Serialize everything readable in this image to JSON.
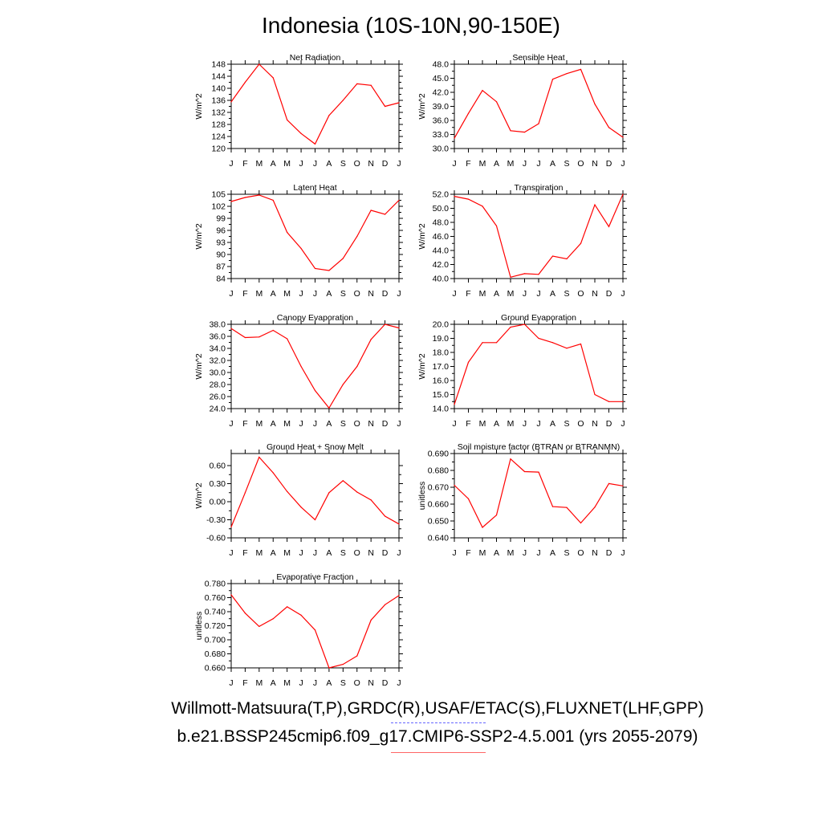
{
  "page": {
    "title": "Indonesia (10S-10N,90-150E)",
    "footer": {
      "line1": "Willmott-Matsuura(T,P),GRDC(R),USAF/ETAC(S),FLUXNET(LHF,GPP)",
      "line2": "b.e21.BSSP245cmip6.f09_g17.CMIP6-SSP2-4.5.001 (yrs 2055-2079)",
      "obs_color": "#6666ff",
      "model_color": "#ff6666"
    }
  },
  "chart_data": [
    {
      "type": "line",
      "title": "Net Radiation",
      "ylabel": "W/m^2",
      "categories": [
        "J",
        "F",
        "M",
        "A",
        "M",
        "J",
        "J",
        "A",
        "S",
        "O",
        "N",
        "D",
        "J"
      ],
      "ylim": [
        120,
        148
      ],
      "yticks": [
        "120",
        "124",
        "128",
        "132",
        "136",
        "140",
        "144",
        "148"
      ],
      "series": [
        {
          "color": "#ff0000",
          "values": [
            135.5,
            142,
            148,
            143.5,
            129.5,
            125,
            121.5,
            131,
            136,
            141.5,
            141,
            134,
            135.2
          ]
        }
      ]
    },
    {
      "type": "line",
      "title": "Sensible Heat",
      "ylabel": "W/m^2",
      "categories": [
        "J",
        "F",
        "M",
        "A",
        "M",
        "J",
        "J",
        "A",
        "S",
        "O",
        "N",
        "D",
        "J"
      ],
      "ylim": [
        30,
        48
      ],
      "yticks": [
        "30.0",
        "33.0",
        "36.0",
        "39.0",
        "42.0",
        "45.0",
        "48.0"
      ],
      "series": [
        {
          "color": "#ff0000",
          "values": [
            32.2,
            37.5,
            42.4,
            40.0,
            33.8,
            33.5,
            35.3,
            44.8,
            46.0,
            46.9,
            39.5,
            34.5,
            32.4
          ]
        }
      ]
    },
    {
      "type": "line",
      "title": "Latent Heat",
      "ylabel": "W/m^2",
      "categories": [
        "J",
        "F",
        "M",
        "A",
        "M",
        "J",
        "J",
        "A",
        "S",
        "O",
        "N",
        "D",
        "J"
      ],
      "ylim": [
        84,
        105
      ],
      "yticks": [
        "84",
        "87",
        "90",
        "93",
        "96",
        "99",
        "102",
        "105"
      ],
      "series": [
        {
          "color": "#ff0000",
          "values": [
            103.2,
            104.2,
            104.8,
            103.5,
            95.5,
            91.5,
            86.5,
            86.0,
            89.0,
            94.5,
            101.0,
            100.0,
            103.5
          ]
        }
      ]
    },
    {
      "type": "line",
      "title": "Transpiration",
      "ylabel": "W/m^2",
      "categories": [
        "J",
        "F",
        "M",
        "A",
        "M",
        "J",
        "J",
        "A",
        "S",
        "O",
        "N",
        "D",
        "J"
      ],
      "ylim": [
        40,
        52
      ],
      "yticks": [
        "40.0",
        "42.0",
        "44.0",
        "46.0",
        "48.0",
        "50.0",
        "52.0"
      ],
      "series": [
        {
          "color": "#ff0000",
          "values": [
            51.7,
            51.3,
            50.3,
            47.5,
            40.2,
            40.7,
            40.6,
            43.2,
            42.8,
            45.0,
            50.5,
            47.4,
            52.0
          ]
        }
      ]
    },
    {
      "type": "line",
      "title": "Canopy Evaporation",
      "ylabel": "W/m^2",
      "categories": [
        "J",
        "F",
        "M",
        "A",
        "M",
        "J",
        "J",
        "A",
        "S",
        "O",
        "N",
        "D",
        "J"
      ],
      "ylim": [
        24,
        38
      ],
      "yticks": [
        "24.0",
        "26.0",
        "28.0",
        "30.0",
        "32.0",
        "34.0",
        "36.0",
        "38.0"
      ],
      "series": [
        {
          "color": "#ff0000",
          "values": [
            37.3,
            35.8,
            35.9,
            37.0,
            35.6,
            31.0,
            27.0,
            24.1,
            28.0,
            31.0,
            35.5,
            38.0,
            37.4
          ]
        }
      ]
    },
    {
      "type": "line",
      "title": "Ground Evaporation",
      "ylabel": "W/m^2",
      "categories": [
        "J",
        "F",
        "M",
        "A",
        "M",
        "J",
        "J",
        "A",
        "S",
        "O",
        "N",
        "D",
        "J"
      ],
      "ylim": [
        14,
        20
      ],
      "yticks": [
        "14.0",
        "15.0",
        "16.0",
        "17.0",
        "18.0",
        "19.0",
        "20.0"
      ],
      "series": [
        {
          "color": "#ff0000",
          "values": [
            14.3,
            17.3,
            18.7,
            18.7,
            19.8,
            20.0,
            19.0,
            18.7,
            18.3,
            18.6,
            15.0,
            14.5,
            14.5
          ]
        }
      ]
    },
    {
      "type": "line",
      "title": "Ground Heat + Snow Melt",
      "ylabel": "W/m^2",
      "categories": [
        "J",
        "F",
        "M",
        "A",
        "M",
        "J",
        "J",
        "A",
        "S",
        "O",
        "N",
        "D",
        "J"
      ],
      "ylim": [
        -0.6,
        0.8
      ],
      "yticks": [
        "-0.60",
        "-0.30",
        "0.00",
        "0.30",
        "0.60"
      ],
      "ytickvals": [
        -0.6,
        -0.3,
        0.0,
        0.3,
        0.6
      ],
      "series": [
        {
          "color": "#ff0000",
          "values": [
            -0.42,
            0.15,
            0.74,
            0.48,
            0.17,
            -0.09,
            -0.3,
            0.15,
            0.35,
            0.16,
            0.03,
            -0.24,
            -0.37
          ]
        }
      ]
    },
    {
      "type": "line",
      "title": "Soil moisture factor (BTRAN or BTRANMN)",
      "ylabel": "unitless",
      "categories": [
        "J",
        "F",
        "M",
        "A",
        "M",
        "J",
        "J",
        "A",
        "S",
        "O",
        "N",
        "D",
        "J"
      ],
      "ylim": [
        0.64,
        0.69
      ],
      "yticks": [
        "0.640",
        "0.650",
        "0.660",
        "0.670",
        "0.680",
        "0.690"
      ],
      "series": [
        {
          "color": "#ff0000",
          "values": [
            0.6712,
            0.6632,
            0.6462,
            0.6535,
            0.6868,
            0.6793,
            0.679,
            0.6585,
            0.658,
            0.6488,
            0.6582,
            0.6722,
            0.6708
          ]
        }
      ]
    },
    {
      "type": "line",
      "title": "Evaporative Fraction",
      "ylabel": "unitless",
      "categories": [
        "J",
        "F",
        "M",
        "A",
        "M",
        "J",
        "J",
        "A",
        "S",
        "O",
        "N",
        "D",
        "J"
      ],
      "ylim": [
        0.66,
        0.78
      ],
      "yticks": [
        "0.660",
        "0.680",
        "0.700",
        "0.720",
        "0.740",
        "0.760",
        "0.780"
      ],
      "series": [
        {
          "color": "#ff0000",
          "values": [
            0.764,
            0.738,
            0.719,
            0.73,
            0.747,
            0.735,
            0.714,
            0.66,
            0.665,
            0.677,
            0.728,
            0.75,
            0.763
          ]
        }
      ]
    }
  ]
}
